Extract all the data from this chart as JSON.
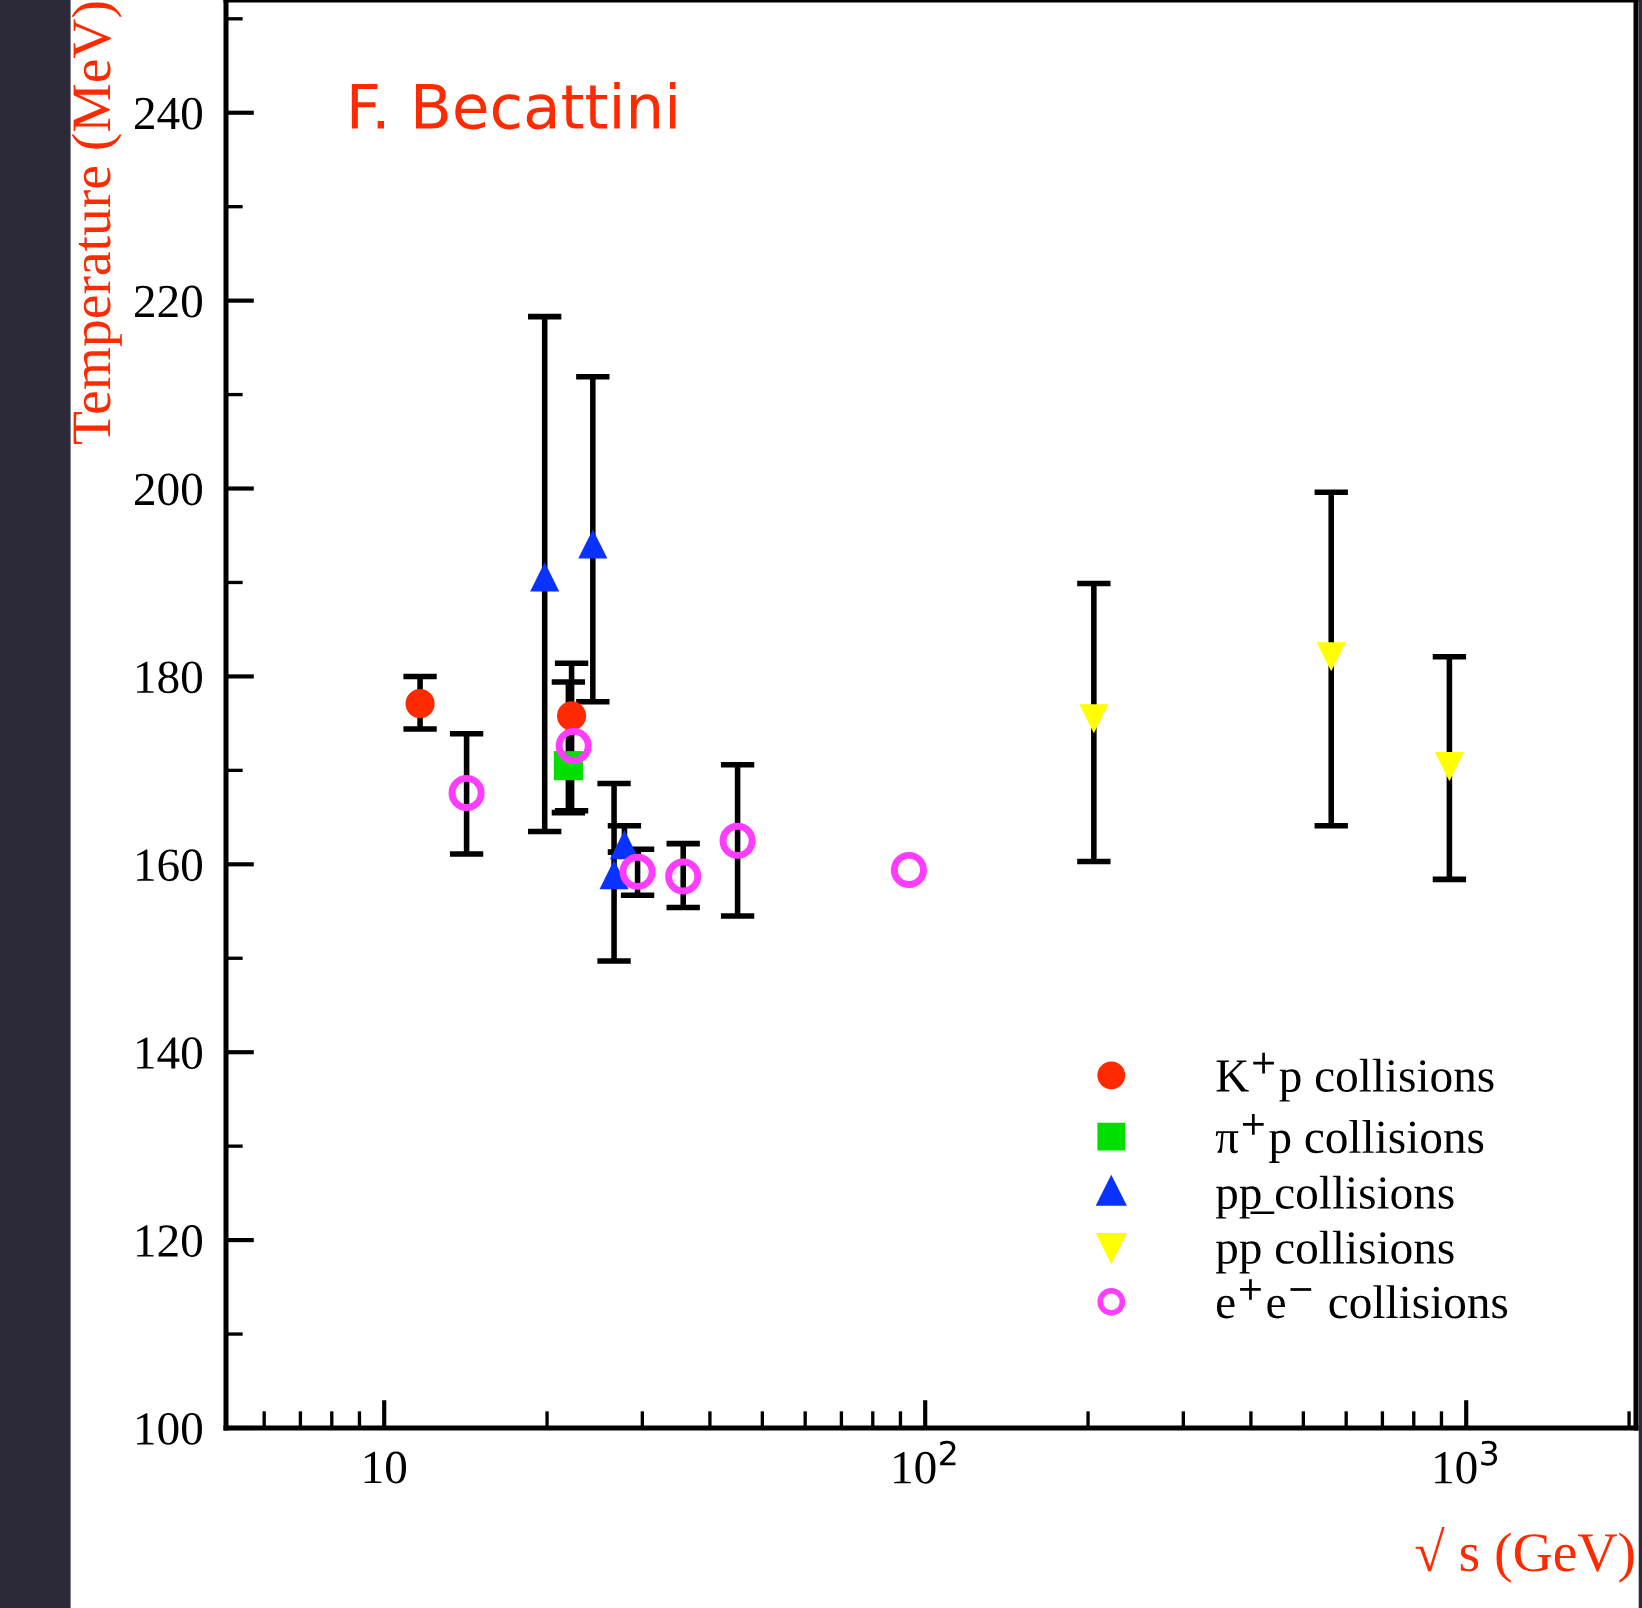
{
  "chart_data": {
    "type": "scatter",
    "xlabel": "√ s (GeV)",
    "ylabel": "Temperature (MeV)",
    "annotations": [
      "F. Becattini"
    ],
    "log": "x",
    "xlim": [
      5.1,
      2060
    ],
    "ylim": [
      100,
      252
    ],
    "xticks": [
      10,
      {
        "value": 100,
        "label": "10$^{2}$"
      },
      {
        "value": 1000,
        "label": "10$^{3}$"
      }
    ],
    "yticks": [
      100,
      120,
      140,
      160,
      180,
      200,
      220,
      240
    ],
    "grid": false,
    "legend": "bottom right",
    "series": [
      {
        "name": "K$^{+}$p collisions",
        "color": "#ff2a00",
        "marker": "circle",
        "x": [
          11.65,
          22.2
        ],
        "values": [
          177.1,
          175.8
        ],
        "errors": [
          [
            174.4,
            180.0
          ],
          [
            165.7,
            181.4
          ]
        ]
      },
      {
        "name": "π$^{+}$p collisions",
        "color": "#00e000",
        "marker": "square",
        "x": [
          21.9
        ],
        "values": [
          170.5
        ],
        "errors": [
          [
            165.5,
            179.4
          ]
        ]
      },
      {
        "name": "pp̲ collisions",
        "color": "#0a32ff",
        "marker": "triangle",
        "x": [
          19.8,
          24.3,
          26.6,
          27.8
        ],
        "values": [
          190.6,
          194.1,
          158.9,
          162.1
        ],
        "errors": [
          [
            163.5,
            218.3
          ],
          [
            177.3,
            211.9
          ],
          [
            149.7,
            168.6
          ],
          [
            161.3,
            164.1
          ]
        ]
      },
      {
        "name": "pp collisions",
        "color": "#ffff00",
        "marker": "triangle_down",
        "x": [
          205,
          563,
          931
        ],
        "values": [
          175.5,
          182.1,
          170.4
        ],
        "errors": [
          [
            160.3,
            189.9
          ],
          [
            164.1,
            199.6
          ],
          [
            158.4,
            182.1
          ]
        ]
      },
      {
        "name": "e$^{+}$e$^{−}$ collisions",
        "color": "#ff3cff",
        "marker": "circle_open",
        "x": [
          14.2,
          22.4,
          29.4,
          35.7,
          45,
          93.3
        ],
        "values": [
          167.6,
          172.6,
          159.2,
          158.7,
          162.5,
          159.4
        ],
        "errors": [
          [
            161.1,
            173.9
          ],
          null,
          [
            156.7,
            161.6
          ],
          [
            155.4,
            162.2
          ],
          [
            154.5,
            170.6
          ],
          null
        ]
      }
    ]
  }
}
